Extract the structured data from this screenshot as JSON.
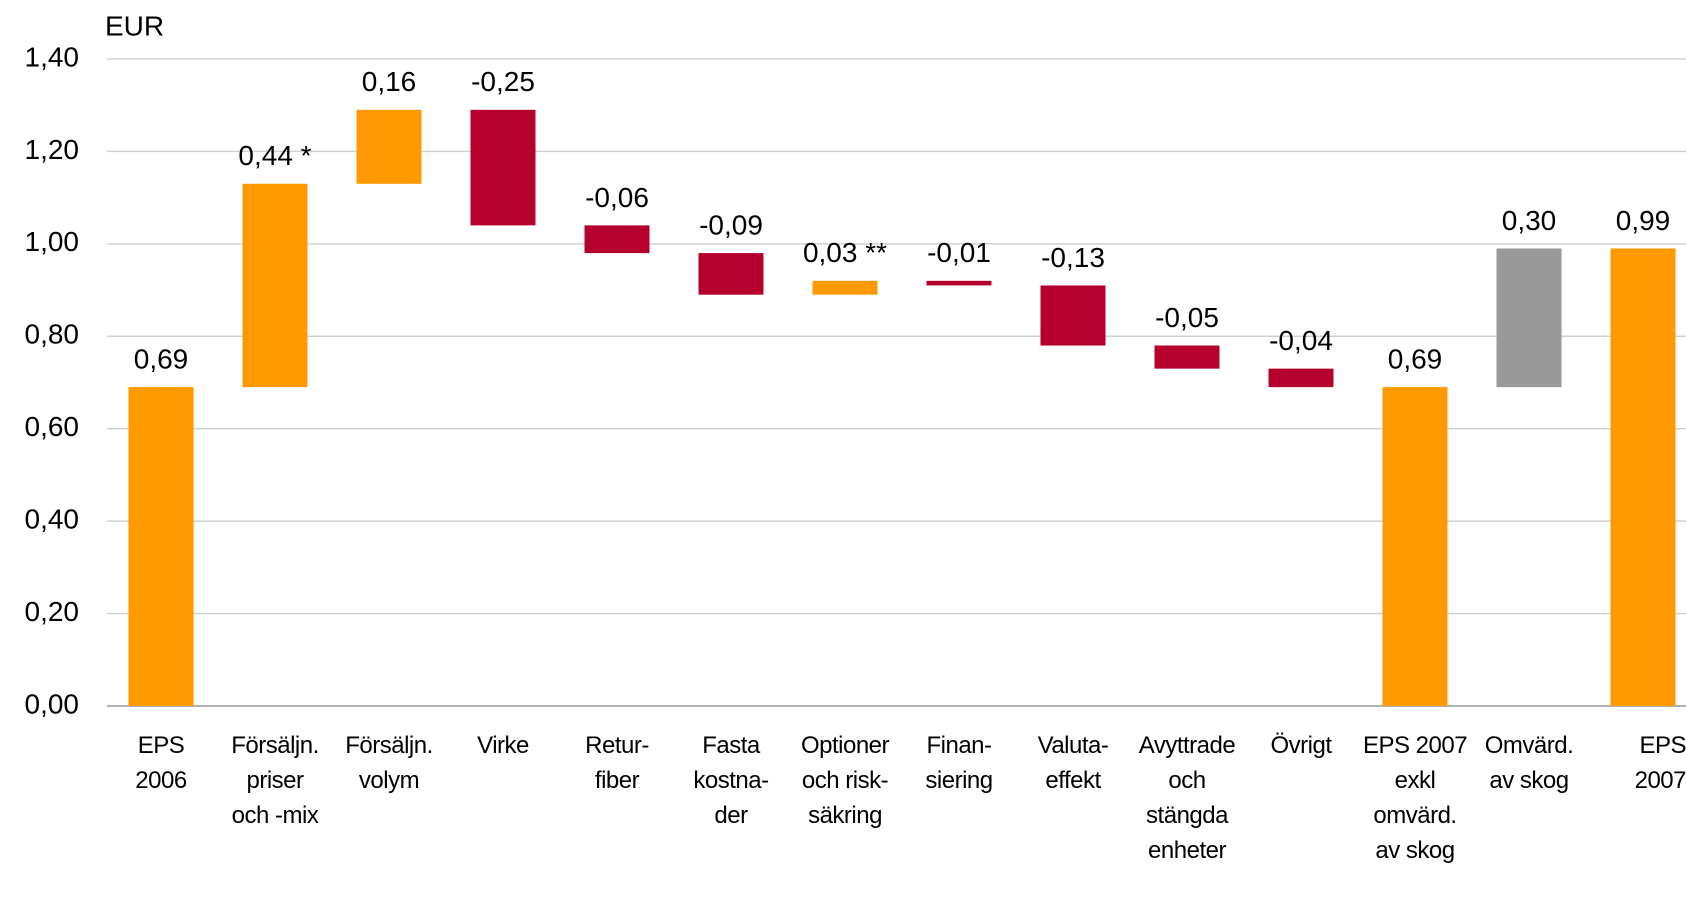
{
  "chart_data": {
    "type": "waterfall",
    "y_label": "EUR",
    "categories": [
      "EPS\n2006",
      "Försäljn.\npriser\noch -mix",
      "Försäljn.\nvolym",
      "Virke",
      "Retur-\nfiber",
      "Fasta\nkostna-\nder",
      "Optioner\noch risk-\nsäkring",
      "Finan-\nsiering",
      "Valuta-\neffekt",
      "Avyttrade\noch\nstängda\nenheter",
      "Övrigt",
      "EPS 2007\nexkl\nomvärd.\nav skog",
      "Omvärd.\nav skog",
      "EPS\n2007"
    ],
    "values": [
      0.69,
      0.44,
      0.16,
      -0.25,
      -0.06,
      -0.09,
      0.03,
      -0.01,
      -0.13,
      -0.05,
      -0.04,
      0.69,
      0.3,
      0.99
    ],
    "value_labels": [
      "0,69",
      "0,44 *",
      "0,16",
      "-0,25",
      "-0,06",
      "-0,09",
      "0,03 **",
      "-0,01",
      "-0,13",
      "-0,05",
      "-0,04",
      "0,69",
      "0,30",
      "0,99"
    ],
    "is_total": [
      true,
      false,
      false,
      false,
      false,
      false,
      false,
      false,
      false,
      false,
      false,
      true,
      false,
      true
    ],
    "colors": [
      "#ff9900",
      "#ff9900",
      "#ff9900",
      "#b5002e",
      "#b5002e",
      "#b5002e",
      "#ff9900",
      "#b5002e",
      "#b5002e",
      "#b5002e",
      "#b5002e",
      "#ff9900",
      "#999999",
      "#ff9900"
    ],
    "ylim": [
      0,
      1.4
    ],
    "yticks": [
      {
        "value": 0,
        "label": "0,00"
      },
      {
        "value": 0.2,
        "label": "0,20"
      },
      {
        "value": 0.4,
        "label": "0,40"
      },
      {
        "value": 0.6,
        "label": "0,60"
      },
      {
        "value": 0.8,
        "label": "0,80"
      },
      {
        "value": 1.0,
        "label": "1,00"
      },
      {
        "value": 1.2,
        "label": "1,20"
      },
      {
        "value": 1.4,
        "label": "1,40"
      }
    ],
    "grid": true
  }
}
